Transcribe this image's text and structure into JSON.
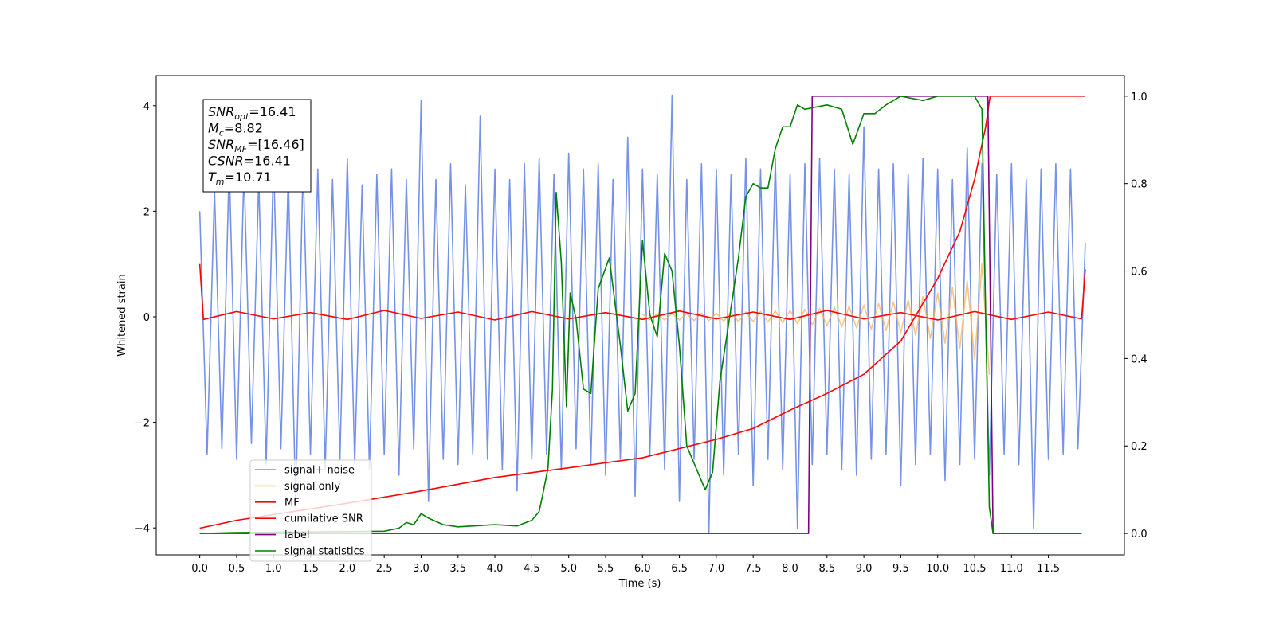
{
  "chart_data": {
    "type": "line",
    "xlabel": "Time (s)",
    "ylabel": "Whitened strain",
    "xlim": [
      -0.59,
      12.53
    ],
    "ylim": [
      -4.51,
      4.57
    ],
    "y2lim": [
      -0.049,
      1.047
    ],
    "xticks": [
      {
        "value": 0,
        "label": "0.0"
      },
      0.5,
      {
        "value": 1,
        "label": "1.0"
      },
      1.5,
      {
        "value": 2,
        "label": "2.0"
      },
      2.5,
      {
        "value": 3,
        "label": "3.0"
      },
      3.5,
      {
        "value": 4,
        "label": "4.0"
      },
      4.5,
      {
        "value": 5,
        "label": "5.0"
      },
      5.5,
      {
        "value": 6,
        "label": "6.0"
      },
      6.5,
      {
        "value": 7,
        "label": "7.0"
      },
      7.5,
      {
        "value": 8,
        "label": "8.0"
      },
      8.5,
      {
        "value": 9,
        "label": "9.0"
      },
      9.5,
      {
        "value": 10,
        "label": "10.0"
      },
      10.5,
      {
        "value": 11,
        "label": "11.0"
      },
      11.5
    ],
    "yticks": [
      {
        "value": -4,
        "label": "−4"
      },
      {
        "value": -2,
        "label": "−2"
      },
      0,
      2,
      4
    ],
    "y2ticks": [
      {
        "value": 0,
        "label": "0.0"
      },
      0.2,
      0.4,
      0.6,
      0.8,
      {
        "value": 1,
        "label": "1.0"
      }
    ],
    "legend": "lower left",
    "annotations": [
      {
        "name": "SNR",
        "sub": "opt",
        "text": "=16.41"
      },
      {
        "name": "M",
        "sub": "c",
        "text": "=8.82"
      },
      {
        "name": "SNR",
        "sub": "MF",
        "text": "=[16.46]"
      },
      {
        "name": "CSNR",
        "text": "=16.41"
      },
      {
        "name": "T",
        "sub": "m",
        "text": "=10.71"
      }
    ],
    "series": [
      {
        "name": "signal+ noise",
        "color": "#6f8ce6",
        "opacity": 0.95,
        "x": [
          0.0,
          0.1,
          0.2,
          0.3,
          0.4,
          0.5,
          0.6,
          0.7,
          0.8,
          0.9,
          1.0,
          1.1,
          1.2,
          1.3,
          1.4,
          1.5,
          1.6,
          1.7,
          1.8,
          1.9,
          2.0,
          2.1,
          2.2,
          2.3,
          2.4,
          2.5,
          2.6,
          2.7,
          2.8,
          2.9,
          3.0,
          3.1,
          3.2,
          3.3,
          3.4,
          3.5,
          3.6,
          3.7,
          3.8,
          3.9,
          4.0,
          4.1,
          4.2,
          4.3,
          4.4,
          4.5,
          4.6,
          4.7,
          4.8,
          4.9,
          5.0,
          5.1,
          5.2,
          5.3,
          5.4,
          5.5,
          5.6,
          5.7,
          5.8,
          5.9,
          6.0,
          6.1,
          6.2,
          6.3,
          6.4,
          6.5,
          6.6,
          6.7,
          6.8,
          6.9,
          7.0,
          7.1,
          7.2,
          7.3,
          7.4,
          7.5,
          7.6,
          7.7,
          7.8,
          7.9,
          8.0,
          8.1,
          8.2,
          8.3,
          8.4,
          8.5,
          8.6,
          8.7,
          8.8,
          8.9,
          9.0,
          9.1,
          9.2,
          9.3,
          9.4,
          9.5,
          9.6,
          9.7,
          9.8,
          9.9,
          10.0,
          10.1,
          10.2,
          10.3,
          10.4,
          10.5,
          10.6,
          10.7,
          10.8,
          10.9,
          11.0,
          11.1,
          11.2,
          11.3,
          11.4,
          11.5,
          11.6,
          11.7,
          11.8,
          11.9,
          12.0
        ],
        "values": [
          2.0,
          -2.6,
          2.4,
          -2.5,
          2.9,
          -2.7,
          2.8,
          -2.4,
          2.6,
          -2.8,
          3.0,
          -2.5,
          2.7,
          -3.6,
          2.9,
          -2.6,
          2.8,
          -2.9,
          2.6,
          -2.7,
          3.0,
          -2.8,
          2.5,
          -2.9,
          2.7,
          -2.6,
          2.8,
          -3.0,
          2.6,
          -2.5,
          4.1,
          -3.5,
          2.6,
          -2.7,
          2.9,
          -2.8,
          2.5,
          -2.6,
          3.8,
          -2.7,
          2.8,
          -2.9,
          2.6,
          -3.3,
          2.9,
          -2.7,
          3.0,
          -2.6,
          2.7,
          -2.9,
          3.1,
          -2.5,
          2.8,
          -2.8,
          2.9,
          -3.0,
          2.6,
          -2.7,
          3.4,
          -3.4,
          2.8,
          -2.6,
          2.7,
          -2.9,
          4.2,
          -3.5,
          2.6,
          -2.7,
          2.9,
          -4.1,
          2.8,
          -3.0,
          2.7,
          -2.6,
          3.0,
          -3.2,
          2.8,
          -2.7,
          3.0,
          -2.9,
          2.7,
          -4.0,
          2.9,
          -2.8,
          3.0,
          -2.6,
          2.8,
          -2.9,
          2.7,
          -3.0,
          3.6,
          -2.7,
          2.8,
          -2.6,
          2.9,
          -3.2,
          2.7,
          -2.8,
          3.0,
          -2.6,
          2.8,
          -3.1,
          2.6,
          -2.8,
          3.2,
          -2.7,
          2.9,
          -3.0,
          2.7,
          -2.6,
          2.9,
          -2.8,
          2.6,
          -4.0,
          2.8,
          -2.7,
          2.9,
          -2.6,
          2.8,
          -2.5,
          1.4
        ]
      },
      {
        "name": "signal only",
        "color": "#f5b15a",
        "opacity": 0.75,
        "x": [
          6.0,
          6.1,
          6.2,
          6.3,
          6.4,
          6.5,
          6.6,
          6.7,
          6.8,
          6.9,
          7.0,
          7.1,
          7.2,
          7.3,
          7.4,
          7.5,
          7.6,
          7.7,
          7.8,
          7.9,
          8.0,
          8.1,
          8.2,
          8.3,
          8.4,
          8.5,
          8.6,
          8.7,
          8.8,
          8.9,
          9.0,
          9.1,
          9.2,
          9.3,
          9.4,
          9.5,
          9.6,
          9.7,
          9.8,
          9.9,
          10.0,
          10.1,
          10.2,
          10.3,
          10.4,
          10.5,
          10.6,
          10.7
        ],
        "values": [
          0.05,
          -0.05,
          0.05,
          -0.06,
          0.06,
          -0.06,
          0.06,
          -0.07,
          0.07,
          -0.07,
          0.07,
          -0.08,
          0.08,
          -0.09,
          0.09,
          -0.09,
          0.1,
          -0.1,
          0.11,
          -0.11,
          0.12,
          -0.13,
          0.14,
          -0.15,
          0.16,
          -0.17,
          0.18,
          -0.19,
          0.2,
          -0.21,
          0.22,
          -0.23,
          0.25,
          -0.26,
          0.28,
          -0.3,
          0.32,
          -0.35,
          0.38,
          -0.41,
          0.45,
          -0.5,
          0.55,
          -0.6,
          0.68,
          -0.8,
          1.0,
          -1.1
        ]
      },
      {
        "name": "MF",
        "color": "#ff0000",
        "opacity": 1,
        "x": [
          0,
          0.05,
          0.5,
          1,
          1.5,
          2,
          2.5,
          3,
          3.5,
          4,
          4.5,
          5,
          5.5,
          6,
          6.5,
          7,
          7.5,
          8,
          8.5,
          9,
          9.5,
          10,
          10.5,
          11,
          11.5,
          11.95,
          12
        ],
        "values": [
          1.0,
          -0.05,
          0.1,
          -0.04,
          0.08,
          -0.05,
          0.12,
          -0.03,
          0.09,
          -0.06,
          0.1,
          -0.04,
          0.08,
          -0.05,
          0.11,
          -0.04,
          0.09,
          -0.05,
          0.12,
          -0.04,
          0.08,
          -0.06,
          0.1,
          -0.05,
          0.09,
          -0.04,
          0.9
        ]
      },
      {
        "name": "cumilative SNR",
        "color": "#ff0000",
        "opacity": 1,
        "axis": "y2",
        "x": [
          0,
          0.5,
          1,
          2,
          3,
          4,
          5,
          6,
          7,
          7.5,
          8,
          8.5,
          9,
          9.5,
          10,
          10.3,
          10.5,
          10.65,
          10.71,
          12
        ],
        "values": [
          0.012,
          0.03,
          0.043,
          0.069,
          0.097,
          0.128,
          0.15,
          0.173,
          0.215,
          0.24,
          0.282,
          0.32,
          0.364,
          0.44,
          0.583,
          0.69,
          0.81,
          0.93,
          1.0,
          1.0
        ]
      },
      {
        "name": "label",
        "color": "#800080",
        "opacity": 1,
        "axis": "y2",
        "x": [
          0,
          8.25,
          8.3,
          10.68,
          10.75,
          11.95
        ],
        "values": [
          0,
          0,
          1,
          1,
          0,
          0
        ]
      },
      {
        "name": "signal statistics",
        "color": "#008000",
        "opacity": 1,
        "axis": "y2",
        "x": [
          0,
          0.5,
          2.5,
          2.7,
          2.8,
          2.9,
          3.0,
          3.1,
          3.3,
          3.5,
          4.0,
          4.3,
          4.5,
          4.6,
          4.65,
          4.72,
          4.78,
          4.83,
          4.9,
          4.97,
          5.02,
          5.1,
          5.2,
          5.3,
          5.4,
          5.55,
          5.7,
          5.8,
          5.9,
          6.0,
          6.1,
          6.2,
          6.3,
          6.4,
          6.5,
          6.6,
          6.75,
          6.85,
          6.95,
          7.05,
          7.15,
          7.3,
          7.4,
          7.5,
          7.6,
          7.7,
          7.8,
          7.9,
          8.0,
          8.1,
          8.2,
          8.5,
          8.7,
          8.85,
          9.0,
          9.15,
          9.3,
          9.5,
          9.8,
          10.0,
          10.5,
          10.6,
          10.65,
          10.7,
          10.75,
          11.95
        ],
        "values": [
          0,
          0.002,
          0.005,
          0.012,
          0.025,
          0.02,
          0.045,
          0.035,
          0.02,
          0.015,
          0.02,
          0.017,
          0.03,
          0.05,
          0.09,
          0.15,
          0.33,
          0.78,
          0.62,
          0.29,
          0.55,
          0.49,
          0.33,
          0.32,
          0.56,
          0.63,
          0.43,
          0.28,
          0.32,
          0.67,
          0.5,
          0.45,
          0.64,
          0.6,
          0.43,
          0.2,
          0.14,
          0.1,
          0.14,
          0.35,
          0.46,
          0.63,
          0.77,
          0.8,
          0.79,
          0.79,
          0.88,
          0.93,
          0.93,
          0.98,
          0.97,
          0.98,
          0.97,
          0.89,
          0.96,
          0.96,
          0.98,
          1.0,
          0.99,
          1.0,
          1.0,
          0.97,
          0.5,
          0.06,
          0,
          0
        ]
      }
    ]
  }
}
